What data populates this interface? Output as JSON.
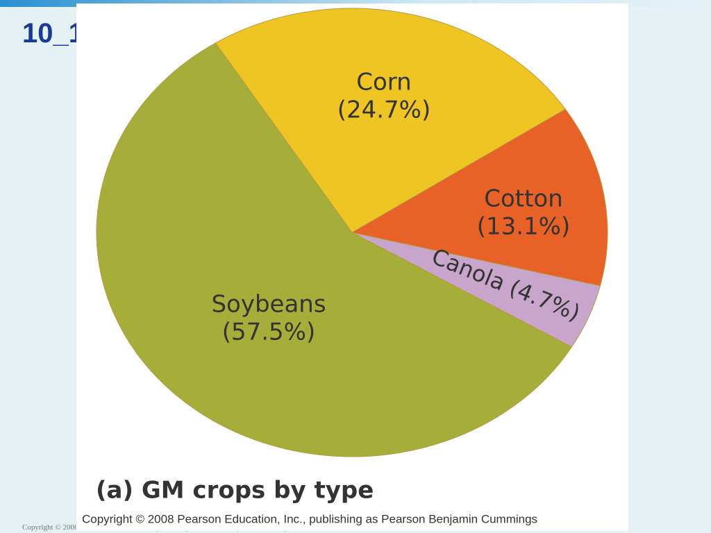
{
  "slide_title": "10_1",
  "footer": "Copyright © 2008 Pearson Education, Inc., publishing as Pearson Benjamin Cummings",
  "chart_data": {
    "type": "pie",
    "title": "(a) GM crops by type",
    "caption": "Copyright © 2008 Pearson Education, Inc., publishing as Pearson Benjamin Cummings",
    "categories": [
      "Corn",
      "Cotton",
      "Canola",
      "Soybeans"
    ],
    "values": [
      24.7,
      13.1,
      4.7,
      57.5
    ],
    "value_labels": [
      "(24.7%)",
      "(13.1%)",
      "(4.7%)",
      "(57.5%)"
    ],
    "colors": [
      "#eec522",
      "#e86227",
      "#c8a6cc",
      "#a5ae38"
    ]
  }
}
